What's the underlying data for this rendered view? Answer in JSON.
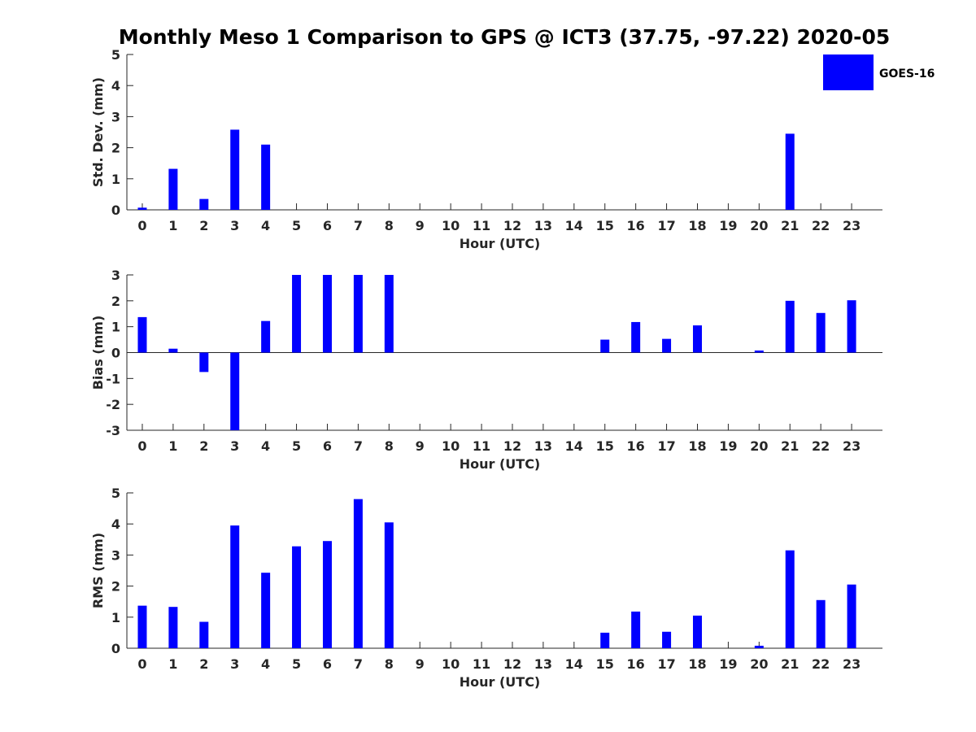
{
  "chart_data": {
    "title": "Monthly Meso 1 Comparison to GPS @ ICT3 (37.75, -97.22) 2020-05",
    "legend": {
      "entries": [
        "GOES-16"
      ],
      "placement": "top-right"
    },
    "series_color": "#0000ff",
    "panels": [
      {
        "type": "bar",
        "ylabel": "Std. Dev. (mm)",
        "xlabel": "Hour (UTC)",
        "ylim": [
          0,
          5
        ],
        "yticks": [
          "0",
          "1",
          "2",
          "3",
          "4",
          "5"
        ],
        "categories": [
          "0",
          "1",
          "2",
          "3",
          "4",
          "5",
          "6",
          "7",
          "8",
          "9",
          "10",
          "11",
          "12",
          "13",
          "14",
          "15",
          "16",
          "17",
          "18",
          "19",
          "20",
          "21",
          "22",
          "23"
        ],
        "series": [
          {
            "name": "GOES-16",
            "values": [
              0.07,
              1.32,
              0.35,
              2.58,
              2.1,
              null,
              null,
              null,
              null,
              null,
              null,
              null,
              null,
              null,
              null,
              null,
              null,
              null,
              null,
              null,
              null,
              2.45,
              null,
              null
            ]
          }
        ]
      },
      {
        "type": "bar",
        "ylabel": "Bias (mm)",
        "xlabel": "Hour (UTC)",
        "ylim": [
          -3,
          3
        ],
        "yticks": [
          "-3",
          "-2",
          "-1",
          "0",
          "1",
          "2",
          "3"
        ],
        "categories": [
          "0",
          "1",
          "2",
          "3",
          "4",
          "5",
          "6",
          "7",
          "8",
          "9",
          "10",
          "11",
          "12",
          "13",
          "14",
          "15",
          "16",
          "17",
          "18",
          "19",
          "20",
          "21",
          "22",
          "23"
        ],
        "series": [
          {
            "name": "GOES-16",
            "values": [
              1.37,
              0.15,
              -0.75,
              -3.0,
              1.22,
              3.0,
              3.0,
              3.0,
              3.0,
              null,
              null,
              null,
              null,
              null,
              null,
              0.5,
              1.18,
              0.53,
              1.05,
              null,
              0.08,
              2.0,
              1.53,
              2.02
            ]
          }
        ]
      },
      {
        "type": "bar",
        "ylabel": "RMS (mm)",
        "xlabel": "Hour (UTC)",
        "ylim": [
          0,
          5
        ],
        "yticks": [
          "0",
          "1",
          "2",
          "3",
          "4",
          "5"
        ],
        "categories": [
          "0",
          "1",
          "2",
          "3",
          "4",
          "5",
          "6",
          "7",
          "8",
          "9",
          "10",
          "11",
          "12",
          "13",
          "14",
          "15",
          "16",
          "17",
          "18",
          "19",
          "20",
          "21",
          "22",
          "23"
        ],
        "series": [
          {
            "name": "GOES-16",
            "values": [
              1.37,
              1.33,
              0.85,
              3.95,
              2.43,
              3.28,
              3.45,
              4.8,
              4.05,
              null,
              null,
              null,
              null,
              null,
              null,
              0.5,
              1.18,
              0.53,
              1.05,
              null,
              0.08,
              3.15,
              1.55,
              2.05
            ]
          }
        ]
      }
    ]
  }
}
